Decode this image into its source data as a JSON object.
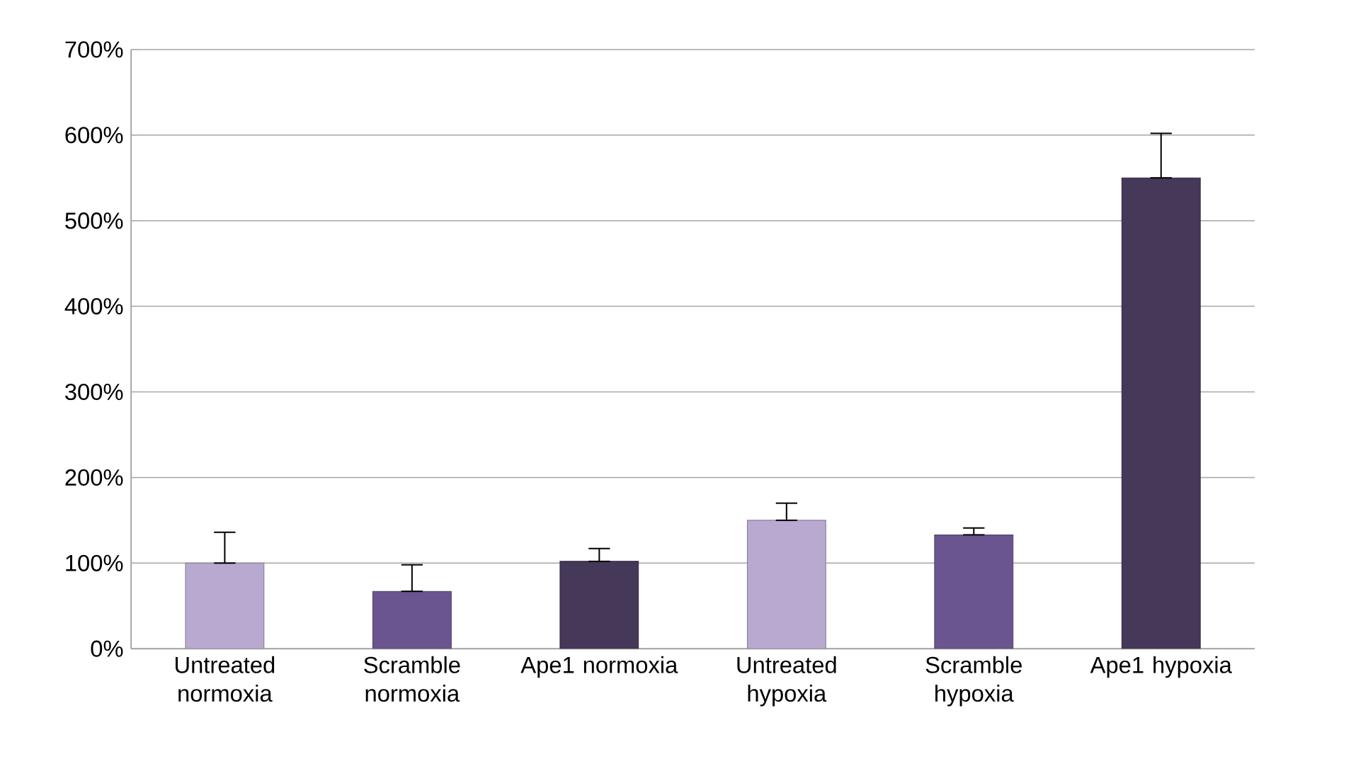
{
  "chart_data": {
    "type": "bar",
    "categories": [
      "Untreated normoxia",
      "Scramble normoxia",
      "Ape1 normoxia",
      "Untreated hypoxia",
      "Scramble hypoxia",
      "Ape1 hypoxia"
    ],
    "values": [
      100,
      67,
      102,
      150,
      133,
      550
    ],
    "colors": [
      "#b8a9d0",
      "#6a5590",
      "#463859",
      "#b8a9d0",
      "#6a5590",
      "#463859"
    ],
    "errors": [
      [
        100,
        136
      ],
      [
        67,
        98
      ],
      [
        102,
        117
      ],
      [
        150,
        170
      ],
      [
        133,
        141
      ],
      [
        550,
        602
      ]
    ],
    "ylim": [
      0,
      700
    ],
    "yticks": [
      {
        "value": 0,
        "label": "0%"
      },
      {
        "value": 100,
        "label": "100%"
      },
      {
        "value": 200,
        "label": "200%"
      },
      {
        "value": 300,
        "label": "300%"
      },
      {
        "value": 400,
        "label": "400%"
      },
      {
        "value": 500,
        "label": "500%"
      },
      {
        "value": 600,
        "label": "600%"
      },
      {
        "value": 700,
        "label": "700%"
      }
    ],
    "grid": "y"
  }
}
